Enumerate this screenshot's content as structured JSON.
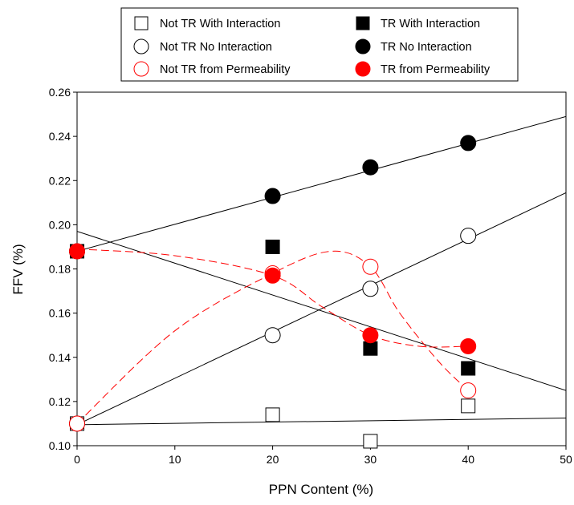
{
  "chart_data": {
    "type": "scatter",
    "xlabel": "PPN Content (%)",
    "ylabel": "FFV (%)",
    "xlim": [
      0,
      50
    ],
    "ylim": [
      0.1,
      0.26
    ],
    "x_ticks": [
      0,
      10,
      20,
      30,
      40,
      50
    ],
    "y_ticks": [
      "0.10",
      "0.12",
      "0.14",
      "0.16",
      "0.18",
      "0.20",
      "0.22",
      "0.24",
      "0.26"
    ],
    "grid": false,
    "legend_position": "top-center",
    "series": [
      {
        "name": "Not TR With Interaction",
        "marker": "square-open",
        "color": "#000000",
        "x": [
          0,
          20,
          30,
          40
        ],
        "y": [
          0.11,
          0.114,
          0.102,
          0.118
        ]
      },
      {
        "name": "Not TR No Interaction",
        "marker": "circle-open",
        "color": "#000000",
        "x": [
          0,
          20,
          30,
          40
        ],
        "y": [
          0.11,
          0.15,
          0.171,
          0.195
        ]
      },
      {
        "name": "Not TR from Permeability",
        "marker": "circle-open",
        "color": "#ff0000",
        "x": [
          0,
          20,
          30,
          40
        ],
        "y": [
          0.11,
          0.178,
          0.181,
          0.125
        ]
      },
      {
        "name": "TR With Interaction",
        "marker": "square-filled",
        "color": "#000000",
        "x": [
          0,
          20,
          30,
          40
        ],
        "y": [
          0.188,
          0.19,
          0.144,
          0.135
        ]
      },
      {
        "name": "TR No Interaction",
        "marker": "circle-filled",
        "color": "#000000",
        "x": [
          0,
          20,
          30,
          40
        ],
        "y": [
          0.188,
          0.213,
          0.226,
          0.237
        ]
      },
      {
        "name": "TR from Permeability",
        "marker": "circle-filled",
        "color": "#ff0000",
        "x": [
          0,
          20,
          30,
          40
        ],
        "y": [
          0.188,
          0.177,
          0.15,
          0.145
        ]
      }
    ],
    "fit_lines": [
      {
        "color": "#000000",
        "x": [
          0,
          50
        ],
        "y": [
          0.1095,
          0.1125
        ]
      },
      {
        "color": "#000000",
        "x": [
          0,
          50
        ],
        "y": [
          0.1095,
          0.2145
        ]
      },
      {
        "color": "#000000",
        "x": [
          0,
          50
        ],
        "y": [
          0.197,
          0.125
        ]
      },
      {
        "color": "#000000",
        "x": [
          0,
          50
        ],
        "y": [
          0.188,
          0.249
        ]
      }
    ],
    "dashed_curves": [
      {
        "color": "#ff0000",
        "points": [
          [
            0,
            0.11
          ],
          [
            10,
            0.152
          ],
          [
            20,
            0.178
          ],
          [
            26,
            0.188
          ],
          [
            30,
            0.181
          ],
          [
            33,
            0.16
          ],
          [
            37,
            0.138
          ],
          [
            40,
            0.125
          ]
        ]
      },
      {
        "color": "#ff0000",
        "points": [
          [
            0,
            0.189
          ],
          [
            10,
            0.186
          ],
          [
            20,
            0.177
          ],
          [
            25,
            0.163
          ],
          [
            30,
            0.15
          ],
          [
            35,
            0.145
          ],
          [
            40,
            0.145
          ]
        ]
      }
    ]
  }
}
